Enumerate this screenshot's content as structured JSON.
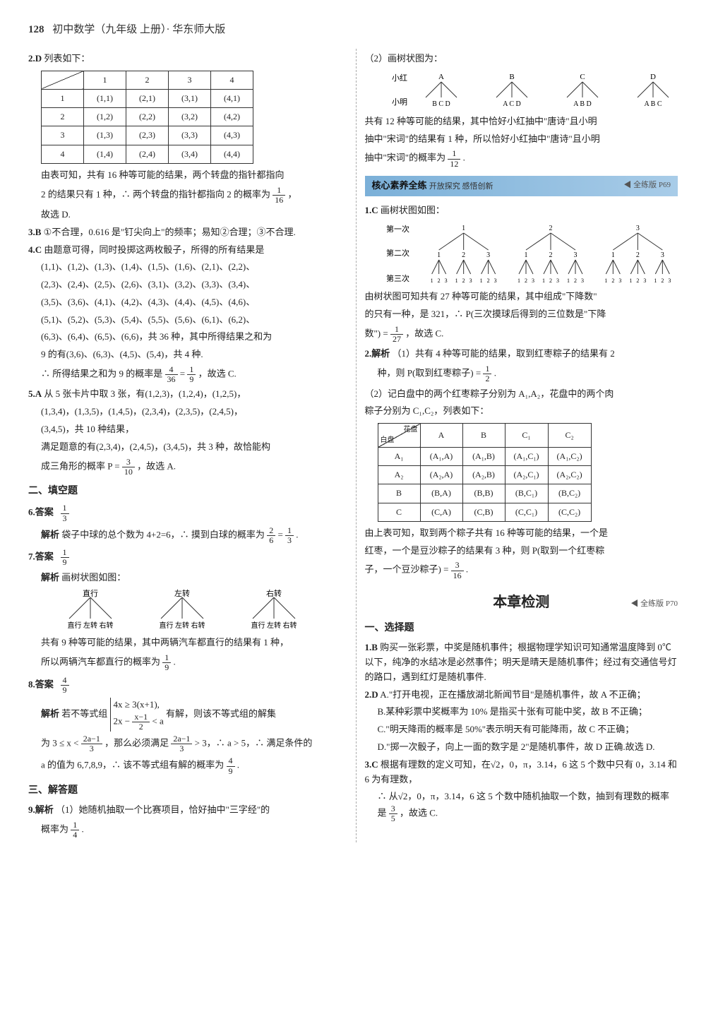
{
  "header": {
    "page_number": "128",
    "title": "初中数学（九年级 上册）· 华东师大版"
  },
  "left": {
    "q2": {
      "num": "2.D",
      "intro": "列表如下：",
      "table": {
        "cols": [
          "",
          "1",
          "2",
          "3",
          "4"
        ],
        "rows": [
          [
            "1",
            "(1,1)",
            "(2,1)",
            "(3,1)",
            "(4,1)"
          ],
          [
            "2",
            "(1,2)",
            "(2,2)",
            "(3,2)",
            "(4,2)"
          ],
          [
            "3",
            "(1,3)",
            "(2,3)",
            "(3,3)",
            "(4,3)"
          ],
          [
            "4",
            "(1,4)",
            "(2,4)",
            "(3,4)",
            "(4,4)"
          ]
        ]
      },
      "text1": "由表可知，共有 16 种等可能的结果，两个转盘的指针都指向",
      "text2a": "2 的结果只有 1 种，∴ 两个转盘的指针都指向 2 的概率为",
      "frac1": {
        "n": "1",
        "d": "16"
      },
      "text2b": "，",
      "text3": "故选 D."
    },
    "q3": {
      "num": "3.B",
      "text": "①不合理，0.616 是\"钉尖向上\"的频率；易知②合理；③不合理."
    },
    "q4": {
      "num": "4.C",
      "text1": "由题意可得，同时投掷这两枚骰子，所得的所有结果是",
      "lines": [
        "(1,1)、(1,2)、(1,3)、(1,4)、(1,5)、(1,6)、(2,1)、(2,2)、",
        "(2,3)、(2,4)、(2,5)、(2,6)、(3,1)、(3,2)、(3,3)、(3,4)、",
        "(3,5)、(3,6)、(4,1)、(4,2)、(4,3)、(4,4)、(4,5)、(4,6)、",
        "(5,1)、(5,2)、(5,3)、(5,4)、(5,5)、(5,6)、(6,1)、(6,2)、",
        "(6,3)、(6,4)、(6,5)、(6,6)，共 36 种，其中所得结果之和为"
      ],
      "text2": "9 的有(3,6)、(6,3)、(4,5)、(5,4)，共 4 种.",
      "text3a": "∴ 所得结果之和为 9 的概率是",
      "frac1": {
        "n": "4",
        "d": "36"
      },
      "text3b": "=",
      "frac2": {
        "n": "1",
        "d": "9"
      },
      "text3c": "，故选 C."
    },
    "q5": {
      "num": "5.A",
      "text1": "从 5 张卡片中取 3 张，有(1,2,3)，(1,2,4)，(1,2,5)，",
      "text2": "(1,3,4)，(1,3,5)，(1,4,5)，(2,3,4)，(2,3,5)，(2,4,5)，",
      "text3": "(3,4,5)，共 10 种结果，",
      "text4": "满足题意的有(2,3,4)，(2,4,5)，(3,4,5)，共 3 种，故恰能构",
      "text5a": "成三角形的概率 P =",
      "frac1": {
        "n": "3",
        "d": "10"
      },
      "text5b": "，故选 A."
    },
    "section_fill": "二、填空题",
    "q6": {
      "num": "6.答案",
      "frac": {
        "n": "1",
        "d": "3"
      },
      "ans_label": "解析",
      "text_a": "袋子中球的总个数为 4+2=6，∴ 摸到白球的概率为",
      "frac2": {
        "n": "2",
        "d": "6"
      },
      "eq": "=",
      "frac3": {
        "n": "1",
        "d": "3"
      },
      "tail": "."
    },
    "q7": {
      "num": "7.答案",
      "frac": {
        "n": "1",
        "d": "9"
      },
      "ans_label": "解析",
      "text1": "画树状图如图：",
      "tree_top": [
        "直行",
        "左转",
        "右转"
      ],
      "tree_bot": [
        "直行 左转 右转",
        "直行 左转 右转",
        "直行 左转 右转"
      ],
      "text2": "共有 9 种等可能的结果，其中两辆汽车都直行的结果有 1 种，",
      "text3a": "所以两辆汽车都直行的概率为",
      "frac2": {
        "n": "1",
        "d": "9"
      },
      "text3b": "."
    },
    "q8": {
      "num": "8.答案",
      "frac": {
        "n": "4",
        "d": "9"
      },
      "ans_label": "解析",
      "text1": "若不等式组",
      "sys1": "4x ≥ 3(x+1),",
      "sys2a": "2x −",
      "sysfrac": {
        "n": "x−1",
        "d": "2"
      },
      "sys2b": "< a",
      "text1b": "有解，则该不等式组的解集",
      "text2a": "为 3 ≤ x <",
      "frac2": {
        "n": "2a−1",
        "d": "3"
      },
      "text2b": "，那么必须满足",
      "frac3": {
        "n": "2a−1",
        "d": "3"
      },
      "text2c": "> 3，∴ a > 5，∴ 满足条件的",
      "text3a": "a 的值为 6,7,8,9，∴ 该不等式组有解的概率为",
      "frac4": {
        "n": "4",
        "d": "9"
      },
      "text3b": "."
    },
    "section_ans": "三、解答题",
    "q9": {
      "num": "9.解析",
      "text1": "（1）她随机抽取一个比赛项目，恰好抽中\"三字经\"的",
      "text2a": "概率为",
      "frac": {
        "n": "1",
        "d": "4"
      },
      "text2b": "."
    }
  },
  "right": {
    "q9p2": {
      "text1": "（2）画树状图为：",
      "tree_labels": {
        "hong": "小红",
        "ming": "小明",
        "top": [
          "A",
          "B",
          "C",
          "D"
        ],
        "bot": [
          "B  C  D",
          "A  C  D",
          "A  B  D",
          "A  B  C"
        ]
      },
      "text2": "共有 12 种等可能的结果，其中恰好小红抽中\"唐诗\"且小明",
      "text3": "抽中\"宋词\"的结果有 1 种，所以恰好小红抽中\"唐诗\"且小明",
      "text4a": "抽中\"宋词\"的概率为",
      "frac": {
        "n": "1",
        "d": "12"
      },
      "text4b": "."
    },
    "banner": {
      "title": "核心素养全练",
      "sub": "开放探究 感悟创新",
      "ref": "◀ 全练版 P69"
    },
    "c1": {
      "num": "1.C",
      "text1": "画树状图如图：",
      "rows": [
        "第一次",
        "第二次",
        "第三次"
      ],
      "text2": "由树状图可知共有 27 种等可能的结果，其中组成\"下降数\"",
      "text3": "的只有一种，是 321，∴ P(三次摸球后得到的三位数是\"下降",
      "text4a": "数\") =",
      "frac": {
        "n": "1",
        "d": "27"
      },
      "text4b": "，故选 C."
    },
    "c2": {
      "num": "2.解析",
      "text1": "（1）共有 4 种等可能的结果，取到红枣粽子的结果有 2",
      "text2a": "种，则 P(取到红枣粽子) =",
      "frac1": {
        "n": "1",
        "d": "2"
      },
      "text2b": ".",
      "text3": "（2）记白盘中的两个红枣粽子分别为 A₁,A₂，花盘中的两个肉",
      "text4": "粽子分别为 C₁,C₂，列表如下：",
      "table": {
        "diag_top": "花盘",
        "diag_bot": "白盘",
        "cols": [
          "A",
          "B",
          "C₁",
          "C₂"
        ],
        "rows": [
          [
            "A₁",
            "(A₁,A)",
            "(A₁,B)",
            "(A₁,C₁)",
            "(A₁,C₂)"
          ],
          [
            "A₂",
            "(A₂,A)",
            "(A₂,B)",
            "(A₂,C₁)",
            "(A₂,C₂)"
          ],
          [
            "B",
            "(B,A)",
            "(B,B)",
            "(B,C₁)",
            "(B,C₂)"
          ],
          [
            "C",
            "(C,A)",
            "(C,B)",
            "(C,C₁)",
            "(C,C₂)"
          ]
        ]
      },
      "text5": "由上表可知，取到两个粽子共有 16 种等可能的结果，一个是",
      "text6": "红枣，一个是豆沙粽子的结果有 3 种，则 P(取到一个红枣粽",
      "text7a": "子，一个豆沙粽子) =",
      "frac2": {
        "n": "3",
        "d": "16"
      },
      "text7b": "."
    },
    "chapter": "本章检测",
    "chapter_ref": "◀ 全练版 P70",
    "section_choice": "一、选择题",
    "b1": {
      "num": "1.B",
      "text": "购买一张彩票，中奖是随机事件；根据物理学知识可知通常温度降到 0℃以下，纯净的水结冰是必然事件；明天是晴天是随机事件；经过有交通信号灯的路口，遇到红灯是随机事件."
    },
    "b2": {
      "num": "2.D",
      "a": "A.\"打开电视，正在播放湖北新闻节目\"是随机事件，故 A 不正确；",
      "b": "B.某种彩票中奖概率为 10% 是指买十张有可能中奖，故 B 不正确；",
      "c": "C.\"明天降雨的概率是 50%\"表示明天有可能降雨，故 C 不正确；",
      "d": "D.\"掷一次骰子，向上一面的数字是 2\"是随机事件，故 D 正确.故选 D."
    },
    "b3": {
      "num": "3.C",
      "text1": "根据有理数的定义可知，在√2，0，π，3.14，6 这 5 个数中只有 0，3.14 和 6 为有理数，",
      "text2a": "∴ 从√2，0，π，3.14，6 这 5 个数中随机抽取一个数，抽到有理数的概率是",
      "frac": {
        "n": "3",
        "d": "5"
      },
      "text2b": "，故选 C."
    }
  }
}
